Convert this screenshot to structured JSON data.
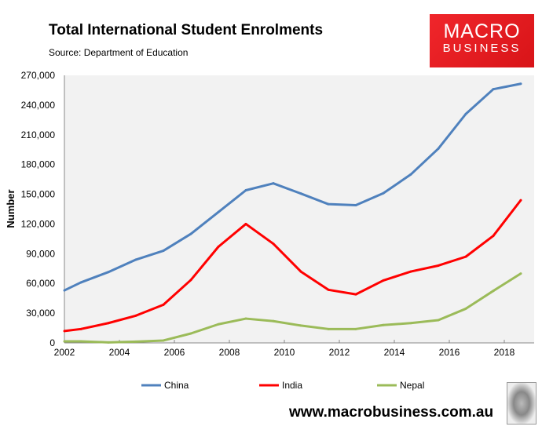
{
  "header": {
    "title": "Total International Student Enrolments",
    "source": "Source: Department of Education"
  },
  "logo": {
    "line1": "MACRO",
    "line2": "BUSINESS"
  },
  "footer": {
    "url": "www.macrobusiness.com.au"
  },
  "chart_data": {
    "type": "line",
    "title": "Total International Student Enrolments",
    "xlabel": "",
    "ylabel": "Number",
    "xlim": [
      2002,
      2019
    ],
    "ylim": [
      0,
      270000
    ],
    "xticks": [
      2002,
      2004,
      2006,
      2008,
      2010,
      2012,
      2014,
      2016,
      2018
    ],
    "yticks": [
      0,
      30000,
      60000,
      90000,
      120000,
      150000,
      180000,
      210000,
      240000,
      270000
    ],
    "ytick_labels": [
      "0",
      "30,000",
      "60,000",
      "90,000",
      "120,000",
      "150,000",
      "180,000",
      "210,000",
      "240,000",
      "270,000"
    ],
    "legend_position": "bottom",
    "x": [
      2002,
      2002.6,
      2003.6,
      2004.6,
      2005.6,
      2006.6,
      2007.6,
      2008.6,
      2009.6,
      2010.6,
      2011.6,
      2012.6,
      2013.6,
      2014.6,
      2015.6,
      2016.6,
      2017.6,
      2018.6
    ],
    "series": [
      {
        "name": "China",
        "color": "#4f81bd",
        "values": [
          53000,
          61000,
          71500,
          84000,
          93000,
          110000,
          132000,
          154000,
          161000,
          150700,
          140000,
          139000,
          151000,
          170000,
          196000,
          231000,
          256000,
          261500
        ]
      },
      {
        "name": "India",
        "color": "#ff0000",
        "values": [
          12000,
          14000,
          20000,
          27500,
          38500,
          63500,
          97000,
          120000,
          100000,
          72000,
          53600,
          49000,
          63000,
          72000,
          78000,
          87000,
          108000,
          144000
        ]
      },
      {
        "name": "Nepal",
        "color": "#9bbb59",
        "values": [
          1600,
          1600,
          500,
          1300,
          2400,
          9500,
          18800,
          24500,
          22000,
          17500,
          14000,
          14000,
          18000,
          20000,
          23000,
          34500,
          52500,
          70000
        ]
      }
    ]
  }
}
